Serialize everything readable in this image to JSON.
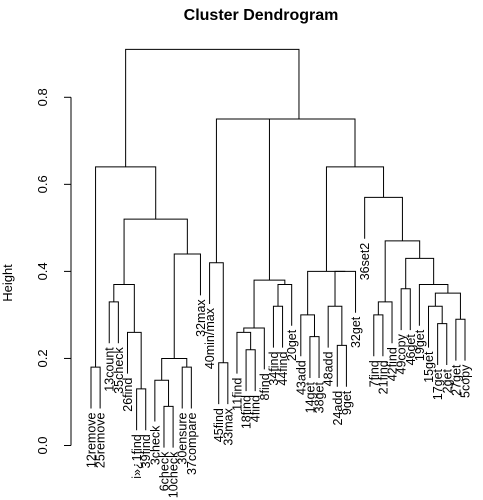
{
  "chart_data": {
    "type": "dendrogram",
    "title": "Cluster Dendrogram",
    "ylabel": "Height",
    "xlabel": "",
    "ylim": [
      0,
      0.95
    ],
    "yticks": [
      0.0,
      0.2,
      0.4,
      0.6,
      0.8
    ],
    "ytick_labels": [
      "0.0",
      "0.2",
      "0.4",
      "0.6",
      "0.8"
    ],
    "grid": false,
    "leaves": [
      "12remove",
      "25remove",
      "13count",
      "35check",
      "26find",
      "i»¿1find",
      "39find",
      "3check",
      "6check",
      "10check",
      "30ensure",
      "37compare",
      "32max",
      "40min/max",
      "45find",
      "33max",
      "11find",
      "18find",
      "4find",
      "8find",
      "34find",
      "44find",
      "20get",
      "43add",
      "14get",
      "38get",
      "48add",
      "24add",
      "9get",
      "32get",
      "36set2",
      "7find",
      "21find",
      "42find",
      "49copy",
      "46get",
      "19get",
      "15get",
      "17get",
      "2get",
      "27get",
      "5copy"
    ],
    "merges": [
      {
        "id": "m1",
        "a": "L:12remove",
        "b": "L:25remove",
        "height": 0.18
      },
      {
        "id": "m2",
        "a": "L:13count",
        "b": "L:35check",
        "height": 0.33
      },
      {
        "id": "m3",
        "a": "L:i»¿1find",
        "b": "L:39find",
        "height": 0.13
      },
      {
        "id": "m4",
        "a": "L:26find",
        "b": "m3",
        "height": 0.26
      },
      {
        "id": "m5",
        "a": "m2",
        "b": "m4",
        "height": 0.37
      },
      {
        "id": "m6",
        "a": "L:6check",
        "b": "L:10check",
        "height": 0.09
      },
      {
        "id": "m7",
        "a": "L:3check",
        "b": "m6",
        "height": 0.15
      },
      {
        "id": "m8",
        "a": "L:30ensure",
        "b": "L:37compare",
        "height": 0.18
      },
      {
        "id": "m9",
        "a": "m7",
        "b": "m8",
        "height": 0.2
      },
      {
        "id": "m10",
        "a": "m9",
        "b": "L:32max",
        "height": 0.44
      },
      {
        "id": "m11",
        "a": "m5",
        "b": "m10",
        "height": 0.52
      },
      {
        "id": "m12",
        "a": "m1",
        "b": "m11",
        "height": 0.64
      },
      {
        "id": "m13",
        "a": "L:45find",
        "b": "L:33max",
        "height": 0.19
      },
      {
        "id": "m14",
        "a": "L:40min/max",
        "b": "m13",
        "height": 0.42
      },
      {
        "id": "m15",
        "a": "L:18find",
        "b": "L:4find",
        "height": 0.22
      },
      {
        "id": "m16",
        "a": "L:11find",
        "b": "m15",
        "height": 0.26
      },
      {
        "id": "m17",
        "a": "m16",
        "b": "L:8find",
        "height": 0.27
      },
      {
        "id": "m18",
        "a": "L:34find",
        "b": "L:44find",
        "height": 0.32
      },
      {
        "id": "m19",
        "a": "m18",
        "b": "L:20get",
        "height": 0.37
      },
      {
        "id": "m20",
        "a": "m17",
        "b": "m19",
        "height": 0.38
      },
      {
        "id": "m21",
        "a": "m14",
        "b": "m20",
        "height": 0.75
      },
      {
        "id": "m22",
        "a": "L:14get",
        "b": "L:38get",
        "height": 0.25
      },
      {
        "id": "m23",
        "a": "L:43add",
        "b": "m22",
        "height": 0.3
      },
      {
        "id": "m24",
        "a": "L:24add",
        "b": "L:9get",
        "height": 0.23
      },
      {
        "id": "m25",
        "a": "L:48add",
        "b": "m24",
        "height": 0.32
      },
      {
        "id": "m26",
        "a": "m25",
        "b": "L:32get",
        "height": 0.4
      },
      {
        "id": "m27",
        "a": "m23",
        "b": "m26",
        "height": 0.4
      },
      {
        "id": "m28",
        "a": "L:7find",
        "b": "L:21find",
        "height": 0.3
      },
      {
        "id": "m29",
        "a": "m28",
        "b": "L:42find",
        "height": 0.33
      },
      {
        "id": "m30",
        "a": "L:49copy",
        "b": "L:46get",
        "height": 0.36
      },
      {
        "id": "m31",
        "a": "L:17get",
        "b": "L:2get",
        "height": 0.28
      },
      {
        "id": "m32",
        "a": "L:15get",
        "b": "m31",
        "height": 0.32
      },
      {
        "id": "m33",
        "a": "L:27get",
        "b": "L:5copy",
        "height": 0.29
      },
      {
        "id": "m34",
        "a": "m32",
        "b": "m33",
        "height": 0.35
      },
      {
        "id": "m35",
        "a": "L:19get",
        "b": "m34",
        "height": 0.37
      },
      {
        "id": "m36",
        "a": "m30",
        "b": "m35",
        "height": 0.43
      },
      {
        "id": "m37",
        "a": "m29",
        "b": "m36",
        "height": 0.47
      },
      {
        "id": "m38",
        "a": "L:36set2",
        "b": "m37",
        "height": 0.57
      },
      {
        "id": "m39",
        "a": "m27",
        "b": "m38",
        "height": 0.64
      },
      {
        "id": "m40",
        "a": "m21",
        "b": "m39",
        "height": 0.75
      },
      {
        "id": "m41",
        "a": "m12",
        "b": "m40",
        "height": 0.91
      }
    ]
  }
}
